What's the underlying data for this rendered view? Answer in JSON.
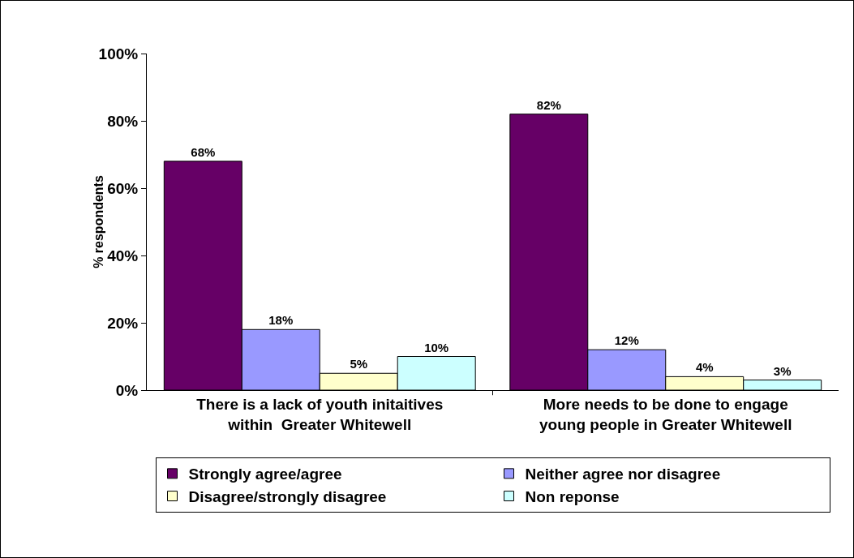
{
  "chart_data": {
    "type": "bar",
    "ylabel": "% respondents",
    "categories": [
      "There is a lack of youth initaitives within  Greater Whitewell",
      "More needs to be done to engage young people in Greater Whitewell"
    ],
    "series": [
      {
        "name": "Strongly agree/agree",
        "color": "#660066",
        "values": [
          68,
          82
        ],
        "value_labels": [
          "68%",
          "82%"
        ]
      },
      {
        "name": "Neither agree nor disagree",
        "color": "#9999ff",
        "values": [
          18,
          12
        ],
        "value_labels": [
          "18%",
          "12%"
        ]
      },
      {
        "name": "Disagree/strongly disagree",
        "color": "#ffffcc",
        "values": [
          5,
          4
        ],
        "value_labels": [
          "5%",
          "4%"
        ]
      },
      {
        "name": "Non reponse",
        "color": "#ccffff",
        "values": [
          10,
          3
        ],
        "value_labels": [
          "10%",
          "3%"
        ]
      }
    ],
    "ylim": [
      0,
      100
    ],
    "yticks": [
      {
        "value": 0,
        "label": "0%"
      },
      {
        "value": 20,
        "label": "20%"
      },
      {
        "value": 40,
        "label": "40%"
      },
      {
        "value": 60,
        "label": "60%"
      },
      {
        "value": 80,
        "label": "80%"
      },
      {
        "value": 100,
        "label": "100%"
      }
    ],
    "grid": false,
    "legend": "bottom"
  }
}
